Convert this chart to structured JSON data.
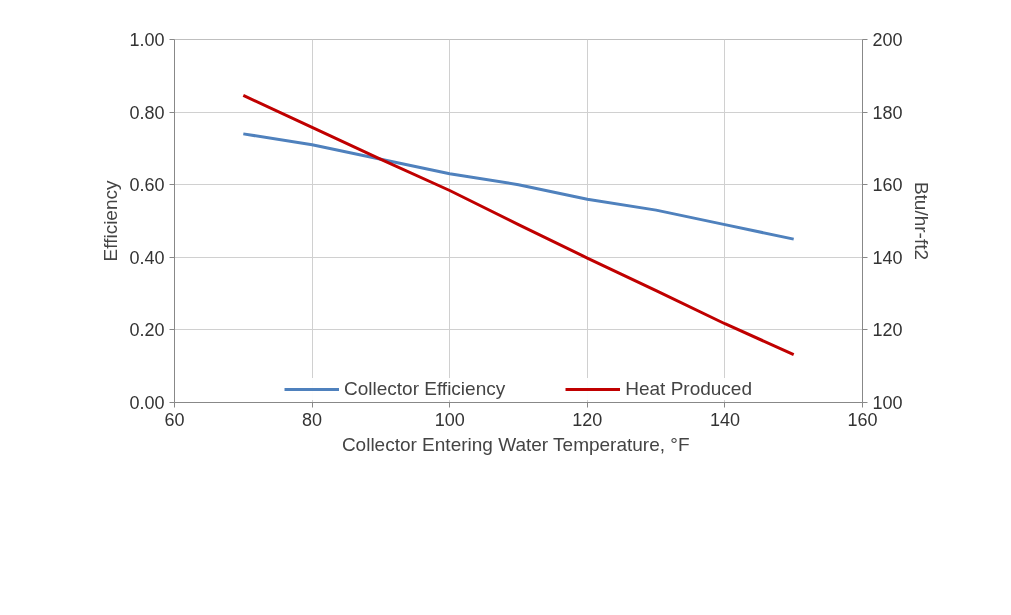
{
  "chart_data": {
    "type": "line",
    "xlabel": "Collector Entering  Water Temperature, °F",
    "ylabel": "Efficiency",
    "y2label": "Btu/hr-ft2",
    "x": [
      70,
      80,
      90,
      100,
      110,
      120,
      130,
      140,
      150
    ],
    "series": [
      {
        "name": "Collector Efficiency",
        "color": "#4f81bd",
        "values": [
          0.74,
          0.71,
          0.67,
          0.63,
          0.6,
          0.56,
          0.53,
          0.49,
          0.45
        ]
      },
      {
        "name": "Heat Produced",
        "color": "#c00000",
        "axis": "y2",
        "values": [
          184.6,
          175.8,
          167,
          158.4,
          149,
          139.8,
          130.8,
          121.7,
          113.2
        ]
      }
    ],
    "xlim": [
      60,
      160
    ],
    "xticks": [
      60,
      80,
      100,
      120,
      140,
      160
    ],
    "ylim": [
      0,
      1
    ],
    "yticks": [
      {
        "value": 0,
        "label": "0.00"
      },
      {
        "value": 0.2,
        "label": "0.20"
      },
      {
        "value": 0.4,
        "label": "0.40"
      },
      {
        "value": 0.6,
        "label": "0.60"
      },
      {
        "value": 0.8,
        "label": "0.80"
      },
      {
        "value": 1,
        "label": "1.00"
      }
    ],
    "y2lim": [
      100,
      200
    ],
    "y2ticks": [
      100,
      120,
      140,
      160,
      180,
      200
    ],
    "grid": true,
    "legend": "bottom",
    "marker": "none",
    "line_style": "solid"
  }
}
